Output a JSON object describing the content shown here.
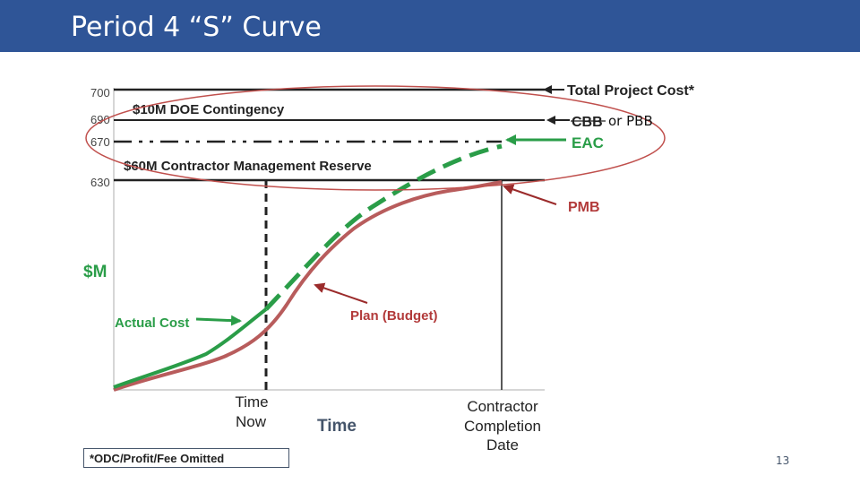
{
  "slide": {
    "title": "Period 4 “S” Curve",
    "page_number": "13",
    "footnote": "*ODC/Profit/Fee Omitted"
  },
  "colors": {
    "title_bar": "#2f5597",
    "actual_cost": "#2a9d48",
    "plan": "#b85c5c",
    "arrow_red": "#9b2b2b",
    "ellipse": "#c0504d"
  },
  "chart_data": {
    "type": "line",
    "ylabel": "$M",
    "xlabel": "Time",
    "y_ticks": [
      700,
      690,
      670,
      630
    ],
    "reference_lines": [
      {
        "value": 700,
        "style": "solid",
        "label": "Total Project Cost*"
      },
      {
        "value": 690,
        "style": "solid",
        "label": "CBB"
      },
      {
        "value": 670,
        "style": "dash-dot",
        "label": "EAC"
      },
      {
        "value": 630,
        "style": "solid",
        "label": "PMB"
      }
    ],
    "bands": [
      {
        "label": "$10M DOE Contingency"
      },
      {
        "label": "$60M Contractor Management Reserve"
      }
    ],
    "series": [
      {
        "name": "Plan (Budget)",
        "style": "solid"
      },
      {
        "name": "Actual Cost",
        "style": "solid-then-dashed"
      }
    ],
    "x_markers": [
      {
        "label_line1": "Time",
        "label_line2": "Now",
        "style": "dashed"
      },
      {
        "label_line1": "Contractor",
        "label_line2": "Completion",
        "label_line3": "Date",
        "style": "solid"
      }
    ],
    "annotations": {
      "pmb": "PMB",
      "eac": "EAC",
      "cbb": "CBB",
      "cbb_note": "or PBB",
      "actual_cost": "Actual Cost",
      "plan": "Plan (Budget)"
    }
  }
}
